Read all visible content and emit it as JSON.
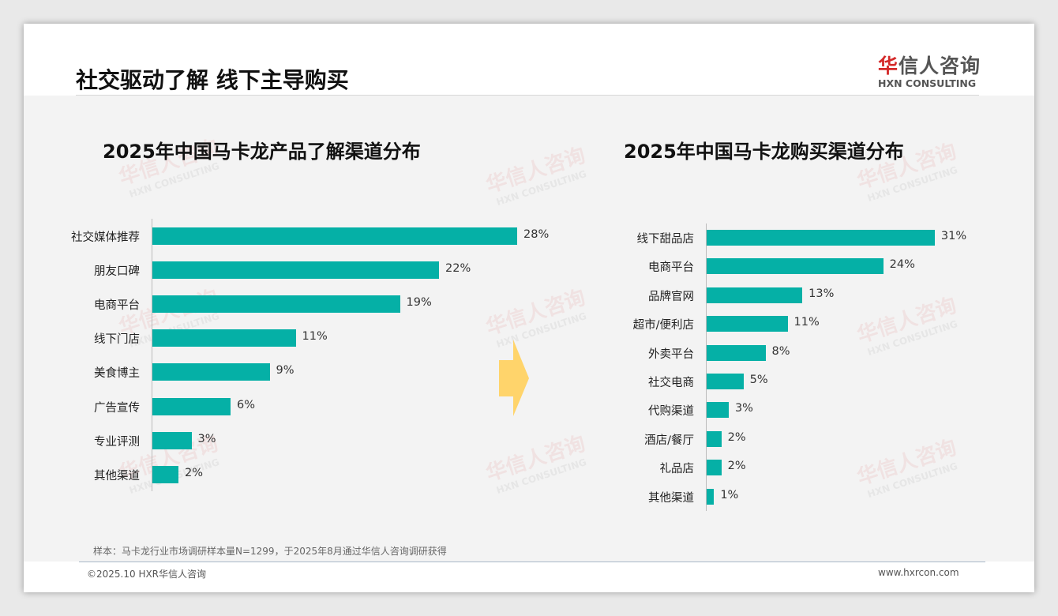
{
  "title": "社交驱动了解 线下主导购买",
  "logo": {
    "cn_red": "华",
    "cn": "信人咨询",
    "en": "HXN CONSULTING"
  },
  "watermark": {
    "cn": "华信人咨询",
    "en": "HXN CONSULTING"
  },
  "chart_data": [
    {
      "type": "bar",
      "orientation": "horizontal",
      "title": "2025年中国马卡龙产品了解渠道分布",
      "unit": "%",
      "categories": [
        "社交媒体推荐",
        "朋友口碑",
        "电商平台",
        "线下门店",
        "美食博主",
        "广告宣传",
        "专业评测",
        "其他渠道"
      ],
      "values": [
        28,
        22,
        19,
        11,
        9,
        6,
        3,
        2
      ],
      "labels": [
        "28%",
        "22%",
        "19%",
        "11%",
        "9%",
        "6%",
        "3%",
        "2%"
      ],
      "color": "#05b0a6"
    },
    {
      "type": "bar",
      "orientation": "horizontal",
      "title": "2025年中国马卡龙购买渠道分布",
      "unit": "%",
      "categories": [
        "线下甜品店",
        "电商平台",
        "品牌官网",
        "超市/便利店",
        "外卖平台",
        "社交电商",
        "代购渠道",
        "酒店/餐厅",
        "礼品店",
        "其他渠道"
      ],
      "values": [
        31,
        24,
        13,
        11,
        8,
        5,
        3,
        2,
        2,
        1
      ],
      "labels": [
        "31%",
        "24%",
        "13%",
        "11%",
        "8%",
        "5%",
        "3%",
        "2%",
        "2%",
        "1%"
      ],
      "color": "#05b0a6"
    }
  ],
  "note": "样本：马卡龙行业市场调研样本量N=1299，于2025年8月通过华信人咨询调研获得",
  "footer": {
    "left": "©2025.10 HXR华信人咨询",
    "right": "www.hxrcon.com"
  }
}
